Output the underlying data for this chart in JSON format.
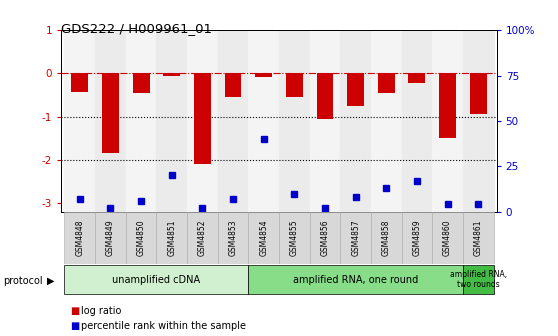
{
  "title": "GDS222 / H009961_01",
  "samples": [
    "GSM4848",
    "GSM4849",
    "GSM4850",
    "GSM4851",
    "GSM4852",
    "GSM4853",
    "GSM4854",
    "GSM4855",
    "GSM4856",
    "GSM4857",
    "GSM4858",
    "GSM4859",
    "GSM4860",
    "GSM4861"
  ],
  "log_ratio": [
    -0.42,
    -1.85,
    -0.45,
    -0.05,
    -2.1,
    -0.55,
    -0.08,
    -0.55,
    -1.05,
    -0.75,
    -0.45,
    -0.22,
    -1.5,
    -0.95
  ],
  "percentile_rank": [
    7,
    2,
    6,
    20,
    2,
    7,
    40,
    10,
    2,
    8,
    13,
    17,
    4,
    4
  ],
  "ylim_left": [
    -3.2,
    1.0
  ],
  "ylim_right": [
    0,
    100
  ],
  "protocol_groups": [
    {
      "label": "unamplified cDNA",
      "start": 0,
      "end": 6,
      "color": "#d0f0d0"
    },
    {
      "label": "amplified RNA, one round",
      "start": 6,
      "end": 13,
      "color": "#88dd88"
    },
    {
      "label": "amplified RNA,\ntwo rounds",
      "start": 13,
      "end": 14,
      "color": "#44bb44"
    }
  ],
  "bar_color": "#cc0000",
  "dot_color": "#0000cc",
  "ref_line_color": "#cc0000",
  "bg_color": "#ffffff",
  "tick_color_left": "#cc0000",
  "tick_color_right": "#0000cc",
  "right_ytick_labels": [
    "0",
    "25",
    "50",
    "75",
    "100%"
  ],
  "right_ytick_vals": [
    0,
    25,
    50,
    75,
    100
  ],
  "left_ytick_labels": [
    "-3",
    "-2",
    "-1",
    "0",
    "1"
  ],
  "left_ytick_vals": [
    -3,
    -2,
    -1,
    0,
    1
  ],
  "legend_items": [
    "log ratio",
    "percentile rank within the sample"
  ]
}
